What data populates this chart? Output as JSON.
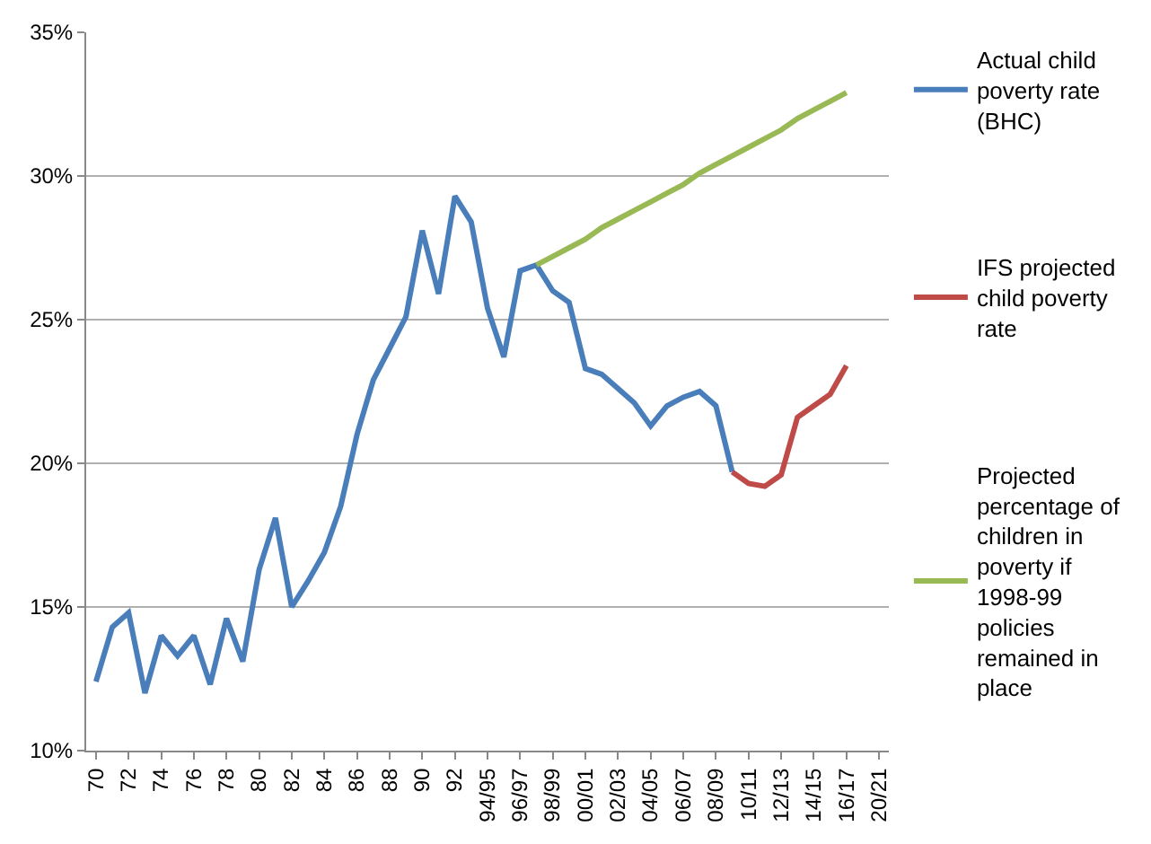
{
  "chart_data": {
    "type": "line",
    "categories": [
      "70",
      null,
      "72",
      null,
      "74",
      null,
      "76",
      null,
      "78",
      null,
      "80",
      null,
      "82",
      null,
      "84",
      null,
      "86",
      null,
      "88",
      null,
      "90",
      null,
      "92",
      null,
      "94/95",
      null,
      "96/97",
      null,
      "98/99",
      null,
      "00/01",
      null,
      "02/03",
      null,
      "04/05",
      null,
      "06/07",
      null,
      "08/09",
      null,
      "10/11",
      null,
      "12/13",
      null,
      "14/15",
      null,
      "16/17",
      null,
      "20/21"
    ],
    "series": [
      {
        "name": "Actual child poverty rate (BHC)",
        "color": "#4a7ebb",
        "values": [
          12.4,
          14.3,
          14.8,
          12.0,
          14.0,
          13.3,
          14.0,
          12.3,
          14.6,
          13.1,
          16.3,
          18.1,
          15.0,
          15.9,
          16.9,
          18.5,
          21.0,
          22.9,
          24.0,
          25.1,
          28.1,
          25.9,
          29.3,
          28.4,
          25.4,
          23.7,
          26.7,
          26.9,
          26.0,
          25.6,
          23.3,
          23.1,
          22.6,
          22.1,
          21.3,
          22.0,
          22.3,
          22.5,
          22.0,
          19.7,
          null,
          null,
          null,
          null,
          null,
          null,
          null,
          null,
          null
        ]
      },
      {
        "name": "IFS projected child poverty rate",
        "color": "#be4b48",
        "values": [
          null,
          null,
          null,
          null,
          null,
          null,
          null,
          null,
          null,
          null,
          null,
          null,
          null,
          null,
          null,
          null,
          null,
          null,
          null,
          null,
          null,
          null,
          null,
          null,
          null,
          null,
          null,
          null,
          null,
          null,
          null,
          null,
          null,
          null,
          null,
          null,
          null,
          null,
          null,
          19.7,
          19.3,
          19.2,
          19.6,
          21.6,
          22.0,
          22.4,
          23.4,
          null,
          null
        ]
      },
      {
        "name": "Projected percentage of children in poverty if 1998-99 policies remained in place",
        "color": "#98b954",
        "values": [
          null,
          null,
          null,
          null,
          null,
          null,
          null,
          null,
          null,
          null,
          null,
          null,
          null,
          null,
          null,
          null,
          null,
          null,
          null,
          null,
          null,
          null,
          null,
          null,
          null,
          null,
          null,
          26.9,
          27.2,
          27.5,
          27.8,
          28.2,
          28.5,
          28.8,
          29.1,
          29.4,
          29.7,
          30.1,
          30.4,
          30.7,
          31.0,
          31.3,
          31.6,
          32.0,
          32.3,
          32.6,
          32.9,
          null,
          null
        ]
      }
    ],
    "ylim": [
      10,
      35
    ],
    "yticks": [
      {
        "value": 10,
        "label": "10%"
      },
      {
        "value": 15,
        "label": "15%"
      },
      {
        "value": 20,
        "label": "20%"
      },
      {
        "value": 25,
        "label": "25%"
      },
      {
        "value": 30,
        "label": "30%"
      },
      {
        "value": 35,
        "label": "35%"
      }
    ],
    "grid": "y",
    "legend": "right",
    "marker": "none",
    "line_style": "solid"
  }
}
